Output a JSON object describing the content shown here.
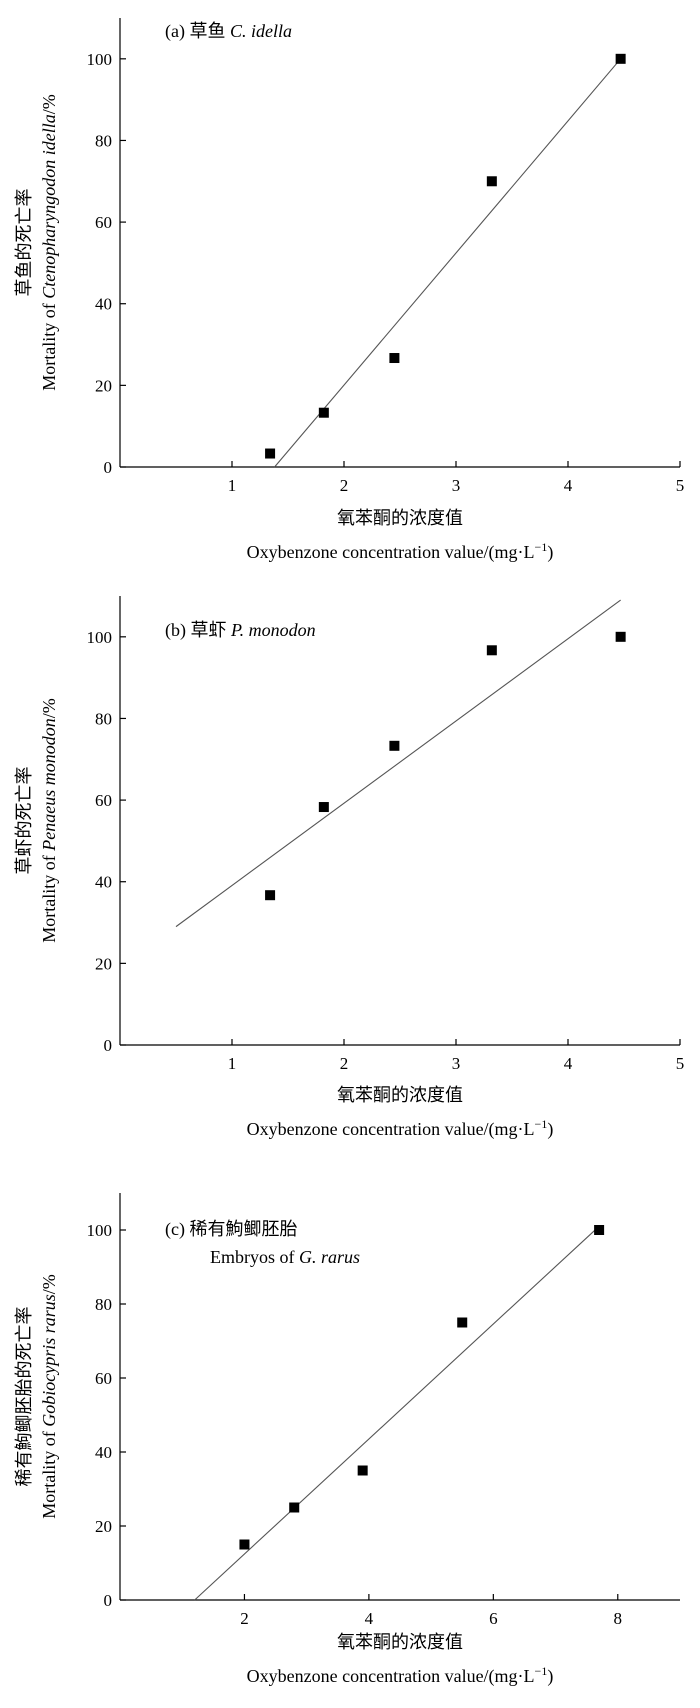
{
  "chart_data": [
    {
      "type": "scatter",
      "label_prefix": "(a) 草鱼 ",
      "label_species": "C. idella",
      "label_line2": "",
      "xlabel_cn": "氧苯酮的浓度值",
      "xlabel_en": "Oxybenzone concentration value/(mg·L",
      "xlabel_sup": "−1",
      "xlabel_end": ")",
      "ylabel_cn": "草鱼的死亡率",
      "ylabel_en_prefix": "Mortality of ",
      "ylabel_en_species": "Ctenopharyngodon idella",
      "ylabel_en_suffix": "/%",
      "xlim": [
        0,
        5
      ],
      "ylim": [
        0,
        110
      ],
      "xticks": [
        1,
        2,
        3,
        4,
        5
      ],
      "yticks": [
        0,
        20,
        40,
        60,
        80,
        100
      ],
      "xtick_labels": [
        "1",
        "2",
        "3",
        "4",
        "5"
      ],
      "ytick_labels": [
        "0",
        "20",
        "40",
        "60",
        "80",
        "100"
      ],
      "x": [
        1.34,
        1.82,
        2.45,
        3.32,
        4.47
      ],
      "y": [
        3.3,
        13.3,
        26.7,
        70,
        100
      ],
      "fit_line": {
        "x": [
          1.38,
          4.47
        ],
        "y": [
          0,
          100
        ]
      }
    },
    {
      "type": "scatter",
      "label_prefix": "(b) 草虾 ",
      "label_species": "P. monodon",
      "label_line2": "",
      "xlabel_cn": "氧苯酮的浓度值",
      "xlabel_en": "Oxybenzone concentration value/(mg·L",
      "xlabel_sup": "−1",
      "xlabel_end": ")",
      "ylabel_cn": "草虾的死亡率",
      "ylabel_en_prefix": "Mortality of ",
      "ylabel_en_species": "Penaeus monodon",
      "ylabel_en_suffix": "/%",
      "xlim": [
        0,
        5
      ],
      "ylim": [
        0,
        110
      ],
      "xticks": [
        1,
        2,
        3,
        4,
        5
      ],
      "yticks": [
        0,
        20,
        40,
        60,
        80,
        100
      ],
      "xtick_labels": [
        "1",
        "2",
        "3",
        "4",
        "5"
      ],
      "ytick_labels": [
        "0",
        "20",
        "40",
        "60",
        "80",
        "100"
      ],
      "x": [
        1.34,
        1.82,
        2.45,
        3.32,
        4.47
      ],
      "y": [
        36.7,
        58.3,
        73.3,
        96.7,
        100
      ],
      "fit_line": {
        "x": [
          0.5,
          4.47
        ],
        "y": [
          29,
          109
        ]
      }
    },
    {
      "type": "scatter",
      "label_prefix": "(c) 稀有鮈鲫胚胎",
      "label_species": "",
      "label_line2": "Embryos of ",
      "label_line2_species": "G. rarus",
      "xlabel_cn": "氧苯酮的浓度值",
      "xlabel_en": "Oxybenzone concentration value/(mg·L",
      "xlabel_sup": "−1",
      "xlabel_end": ")",
      "ylabel_cn": "稀有鮈鲫胚胎的死亡率",
      "ylabel_en_prefix": "Mortality of ",
      "ylabel_en_species": "Gobiocypris rarus",
      "ylabel_en_suffix": "/%",
      "xlim": [
        0,
        9
      ],
      "ylim": [
        0,
        110
      ],
      "xticks": [
        2,
        4,
        6,
        8
      ],
      "yticks": [
        0,
        20,
        40,
        60,
        80,
        100
      ],
      "xtick_labels": [
        "2",
        "4",
        "6",
        "8"
      ],
      "ytick_labels": [
        "0",
        "20",
        "40",
        "60",
        "80",
        "100"
      ],
      "x": [
        2.0,
        2.8,
        3.9,
        5.5,
        7.7
      ],
      "y": [
        15,
        25,
        35,
        75,
        100
      ],
      "fit_line": {
        "x": [
          1.2,
          7.7
        ],
        "y": [
          0,
          101
        ]
      }
    }
  ]
}
